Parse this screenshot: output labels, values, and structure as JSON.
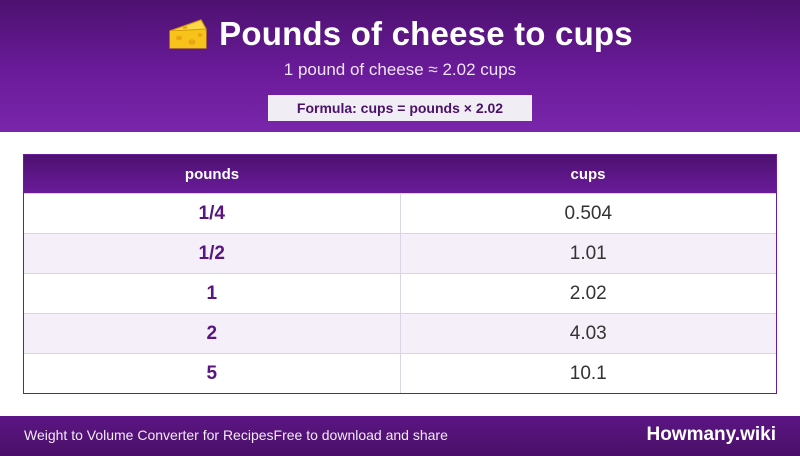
{
  "header": {
    "icon": "cheese-icon",
    "title": "Pounds of cheese to cups",
    "subtitle": "1 pound of cheese ≈ 2.02 cups",
    "formula": "Formula: cups = pounds × 2.02"
  },
  "table": {
    "columns": [
      "pounds",
      "cups"
    ],
    "rows": [
      [
        "1/4",
        "0.504"
      ],
      [
        "1/2",
        "1.01"
      ],
      [
        "1",
        "2.02"
      ],
      [
        "2",
        "4.03"
      ],
      [
        "5",
        "10.1"
      ]
    ]
  },
  "footer": {
    "left_text": "Weight to Volume Converter for RecipesFree to download and share",
    "brand": "Howmany.wiki"
  },
  "colors": {
    "primary_purple": "#6a1b9a",
    "dark_purple": "#4d1170",
    "alt_row": "#f4eff8"
  }
}
